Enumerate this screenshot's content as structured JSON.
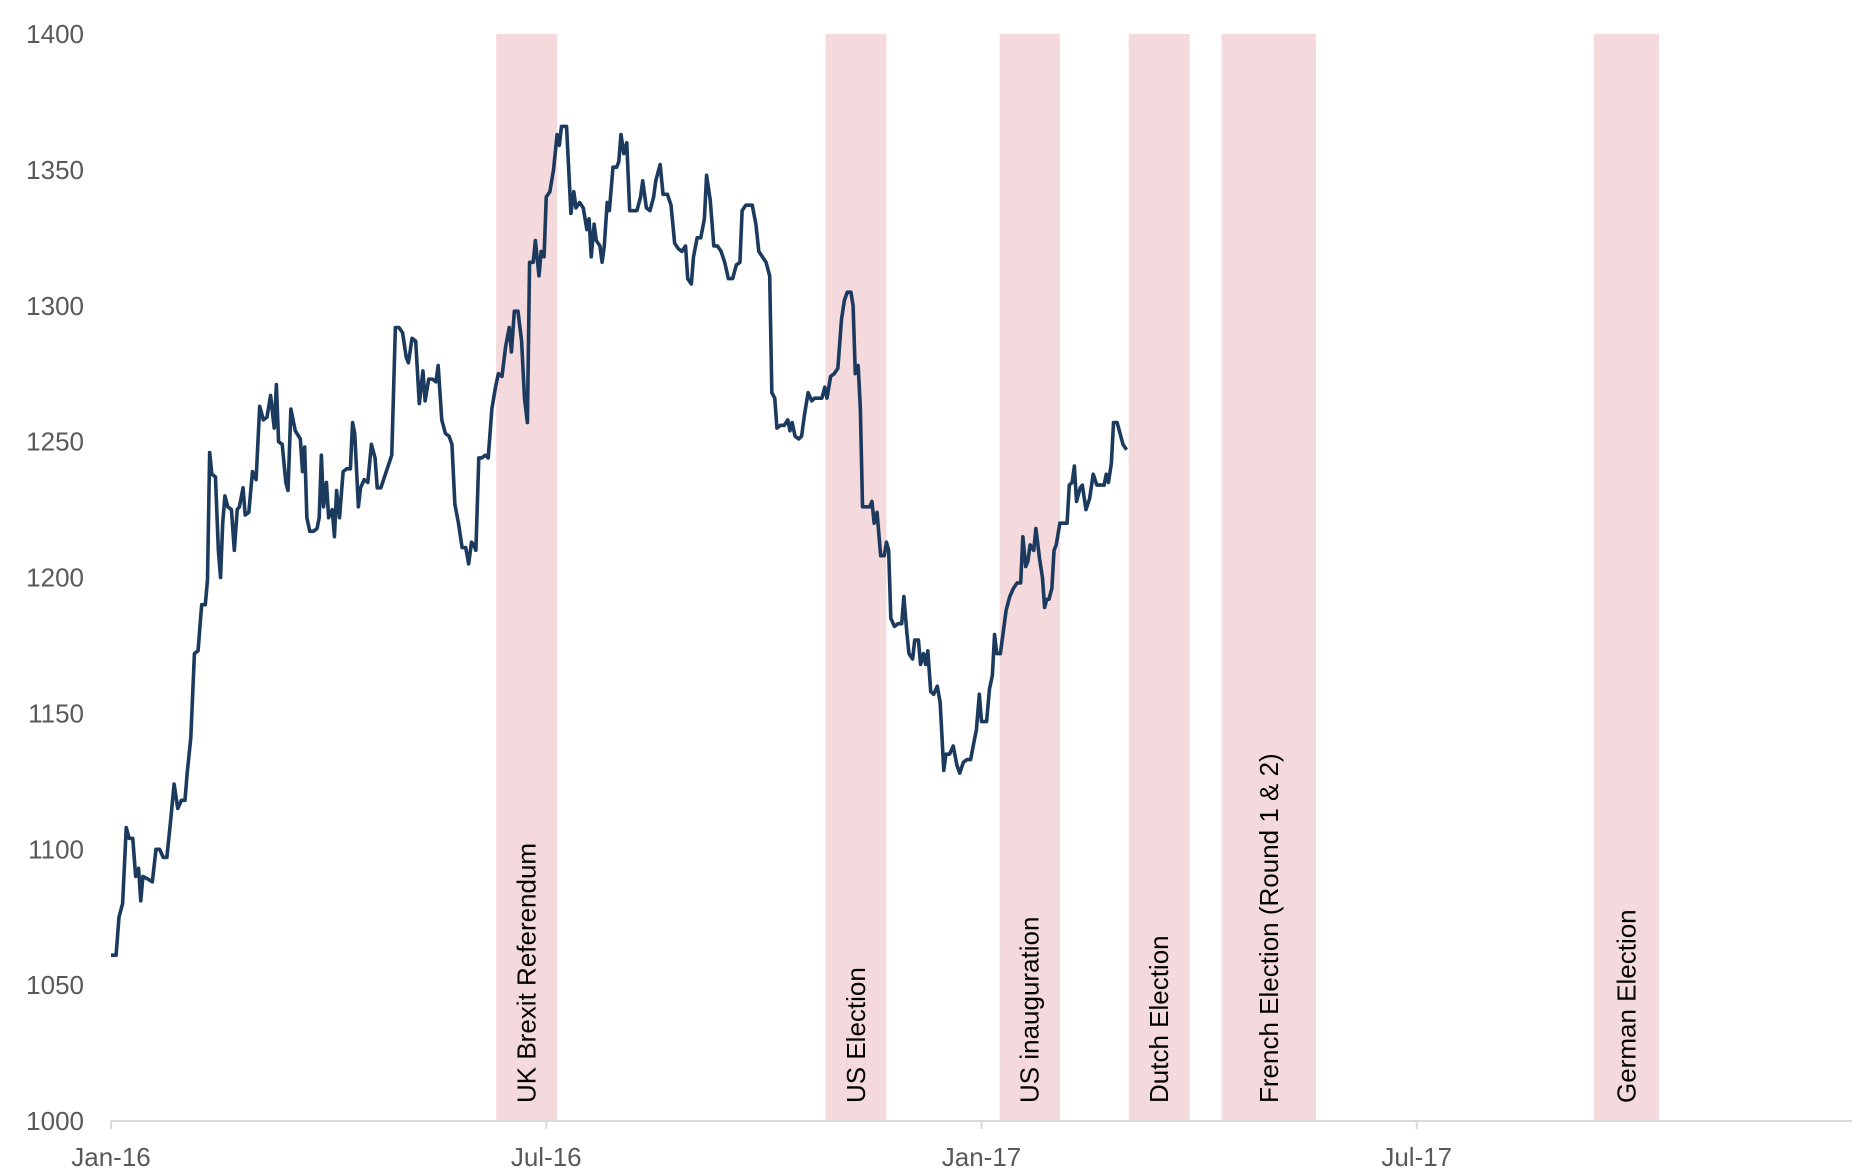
{
  "chart_data": {
    "type": "line",
    "color": "#1b3a5e",
    "band_color": "#f4d9dd",
    "xlim": [
      0,
      24
    ],
    "xticks": [
      {
        "value": 0,
        "label": "Jan-16"
      },
      {
        "value": 6,
        "label": "Jul-16"
      },
      {
        "value": 12,
        "label": "Jan-17"
      },
      {
        "value": 18,
        "label": "Jul-17"
      }
    ],
    "ylim": [
      1000,
      1400
    ],
    "yticks": [
      1000,
      1050,
      1100,
      1150,
      1200,
      1250,
      1300,
      1350,
      1400
    ],
    "grid": false,
    "bands": [
      {
        "label": "UK Brexit Referendum",
        "start": 5.31,
        "end": 6.15
      },
      {
        "label": "US Election",
        "start": 9.85,
        "end": 10.69
      },
      {
        "label": "US inauguration",
        "start": 12.25,
        "end": 13.08
      },
      {
        "label": "Dutch Election",
        "start": 14.03,
        "end": 14.87
      },
      {
        "label": "French Election (Round 1 & 2)",
        "start": 15.31,
        "end": 16.61
      },
      {
        "label": "German Election",
        "start": 20.44,
        "end": 21.34
      }
    ],
    "x": [
      0.0,
      0.07,
      0.11,
      0.16,
      0.21,
      0.25,
      0.3,
      0.34,
      0.38,
      0.41,
      0.44,
      0.51,
      0.57,
      0.62,
      0.67,
      0.72,
      0.77,
      0.82,
      0.87,
      0.92,
      0.97,
      1.02,
      1.05,
      1.1,
      1.15,
      1.2,
      1.25,
      1.3,
      1.33,
      1.36,
      1.39,
      1.44,
      1.48,
      1.51,
      1.54,
      1.57,
      1.61,
      1.66,
      1.7,
      1.74,
      1.77,
      1.82,
      1.85,
      1.9,
      1.95,
      2.0,
      2.05,
      2.1,
      2.15,
      2.2,
      2.25,
      2.28,
      2.31,
      2.36,
      2.41,
      2.44,
      2.48,
      2.51,
      2.54,
      2.61,
      2.64,
      2.67,
      2.7,
      2.74,
      2.79,
      2.84,
      2.87,
      2.9,
      2.93,
      2.97,
      3.0,
      3.05,
      3.08,
      3.11,
      3.15,
      3.2,
      3.25,
      3.3,
      3.33,
      3.36,
      3.41,
      3.44,
      3.49,
      3.54,
      3.59,
      3.64,
      3.67,
      3.72,
      3.77,
      3.82,
      3.87,
      3.92,
      3.97,
      4.02,
      4.07,
      4.1,
      4.15,
      4.2,
      4.25,
      4.3,
      4.33,
      4.38,
      4.43,
      4.48,
      4.51,
      4.56,
      4.61,
      4.66,
      4.7,
      4.74,
      4.79,
      4.84,
      4.89,
      4.93,
      4.97,
      5.0,
      5.03,
      5.07,
      5.11,
      5.16,
      5.2,
      5.25,
      5.3,
      5.34,
      5.39,
      5.44,
      5.49,
      5.52,
      5.56,
      5.61,
      5.66,
      5.7,
      5.74,
      5.77,
      5.82,
      5.85,
      5.9,
      5.93,
      5.97,
      6.0,
      6.05,
      6.1,
      6.15,
      6.18,
      6.21,
      6.28,
      6.31,
      6.34,
      6.38,
      6.41,
      6.46,
      6.51,
      6.56,
      6.59,
      6.62,
      6.66,
      6.69,
      6.74,
      6.77,
      6.8,
      6.84,
      6.87,
      6.92,
      6.97,
      7.0,
      7.03,
      7.07,
      7.11,
      7.15,
      7.2,
      7.25,
      7.3,
      7.33,
      7.38,
      7.43,
      7.48,
      7.51,
      7.57,
      7.61,
      7.67,
      7.72,
      7.77,
      7.82,
      7.87,
      7.92,
      7.95,
      8.0,
      8.03,
      8.08,
      8.13,
      8.18,
      8.21,
      8.26,
      8.31,
      8.36,
      8.41,
      8.46,
      8.51,
      8.57,
      8.62,
      8.67,
      8.7,
      8.75,
      8.84,
      8.89,
      8.93,
      8.98,
      9.03,
      9.08,
      9.11,
      9.15,
      9.18,
      9.23,
      9.28,
      9.33,
      9.36,
      9.39,
      9.43,
      9.48,
      9.52,
      9.56,
      9.61,
      9.66,
      9.7,
      9.75,
      9.8,
      9.84,
      9.87,
      9.92,
      9.97,
      10.02,
      10.07,
      10.11,
      10.15,
      10.2,
      10.23,
      10.26,
      10.3,
      10.33,
      10.36,
      10.41,
      10.46,
      10.49,
      10.52,
      10.56,
      10.61,
      10.66,
      10.69,
      10.72,
      10.75,
      10.8,
      10.85,
      10.9,
      10.93,
      10.97,
      11.0,
      11.05,
      11.08,
      11.13,
      11.16,
      11.2,
      11.23,
      11.26,
      11.3,
      11.34,
      11.39,
      11.43,
      11.48,
      11.51,
      11.56,
      11.61,
      11.66,
      11.7,
      11.75,
      11.8,
      11.85,
      11.9,
      11.93,
      11.97,
      12.0,
      12.07,
      12.11,
      12.15,
      12.18,
      12.21,
      12.26,
      12.31,
      12.34,
      12.39,
      12.44,
      12.49,
      12.54,
      12.57,
      12.61,
      12.64,
      12.67,
      12.72,
      12.75,
      12.8,
      12.84,
      12.87,
      12.9,
      12.93,
      12.97,
      13.0,
      13.03,
      13.08,
      13.13,
      13.18,
      13.21,
      13.25,
      13.28,
      13.31,
      13.36,
      13.39,
      13.44,
      13.49,
      13.54,
      13.59,
      13.64,
      13.69,
      13.72,
      13.75,
      13.79,
      13.82,
      13.87,
      13.92,
      13.95,
      14.0
    ],
    "values": [
      1061,
      1061,
      1075,
      1080,
      1108,
      1104,
      1104,
      1090,
      1093,
      1081,
      1090,
      1089,
      1088,
      1100,
      1100,
      1097,
      1097,
      1110,
      1124,
      1115,
      1118,
      1118,
      1128,
      1141,
      1172,
      1173,
      1190,
      1190,
      1199,
      1246,
      1238,
      1237,
      1210,
      1200,
      1220,
      1230,
      1226,
      1225,
      1210,
      1225,
      1226,
      1233,
      1223,
      1224,
      1239,
      1236,
      1263,
      1258,
      1259,
      1267,
      1255,
      1271,
      1250,
      1249,
      1235,
      1232,
      1262,
      1258,
      1254,
      1251,
      1239,
      1248,
      1222,
      1217,
      1217,
      1218,
      1222,
      1245,
      1226,
      1235,
      1222,
      1225,
      1215,
      1232,
      1222,
      1239,
      1240,
      1240,
      1257,
      1253,
      1226,
      1233,
      1236,
      1235,
      1249,
      1244,
      1233,
      1233,
      1237,
      1241,
      1245,
      1292,
      1292,
      1290,
      1281,
      1279,
      1288,
      1287,
      1264,
      1276,
      1265,
      1273,
      1273,
      1272,
      1278,
      1258,
      1253,
      1252,
      1249,
      1227,
      1220,
      1211,
      1211,
      1205,
      1213,
      1212,
      1210,
      1244,
      1244,
      1245,
      1244,
      1262,
      1270,
      1275,
      1274,
      1285,
      1292,
      1283,
      1298,
      1298,
      1287,
      1266,
      1257,
      1316,
      1316,
      1324,
      1311,
      1320,
      1318,
      1340,
      1342,
      1350,
      1363,
      1359,
      1366,
      1366,
      1350,
      1334,
      1342,
      1336,
      1338,
      1336,
      1328,
      1332,
      1318,
      1330,
      1324,
      1322,
      1316,
      1322,
      1338,
      1335,
      1351,
      1351,
      1353,
      1363,
      1356,
      1360,
      1335,
      1335,
      1335,
      1340,
      1346,
      1336,
      1335,
      1340,
      1346,
      1352,
      1341,
      1341,
      1337,
      1323,
      1321,
      1320,
      1322,
      1310,
      1308,
      1318,
      1325,
      1325,
      1332,
      1348,
      1339,
      1322,
      1322,
      1320,
      1316,
      1310,
      1310,
      1315,
      1316,
      1335,
      1337,
      1337,
      1330,
      1320,
      1318,
      1316,
      1311,
      1268,
      1266,
      1255,
      1256,
      1256,
      1258,
      1254,
      1257,
      1252,
      1251,
      1252,
      1260,
      1268,
      1265,
      1266,
      1266,
      1266,
      1270,
      1266,
      1274,
      1275,
      1277,
      1295,
      1302,
      1305,
      1305,
      1300,
      1275,
      1278,
      1262,
      1226,
      1226,
      1226,
      1228,
      1220,
      1224,
      1208,
      1208,
      1213,
      1210,
      1185,
      1182,
      1183,
      1183,
      1193,
      1180,
      1172,
      1170,
      1177,
      1177,
      1168,
      1172,
      1168,
      1173,
      1158,
      1157,
      1160,
      1154,
      1129,
      1135,
      1135,
      1138,
      1131,
      1128,
      1132,
      1133,
      1133,
      1140,
      1144,
      1157,
      1147,
      1147,
      1159,
      1164,
      1179,
      1172,
      1172,
      1182,
      1188,
      1193,
      1196,
      1198,
      1198,
      1215,
      1204,
      1206,
      1212,
      1210,
      1218,
      1207,
      1200,
      1189,
      1192,
      1192,
      1196,
      1210,
      1212,
      1220,
      1220,
      1220,
      1234,
      1235,
      1241,
      1228,
      1233,
      1234,
      1225,
      1229,
      1238,
      1234,
      1234,
      1234,
      1238,
      1235,
      1242,
      1257,
      1257,
      1252,
      1249,
      1247
    ]
  }
}
